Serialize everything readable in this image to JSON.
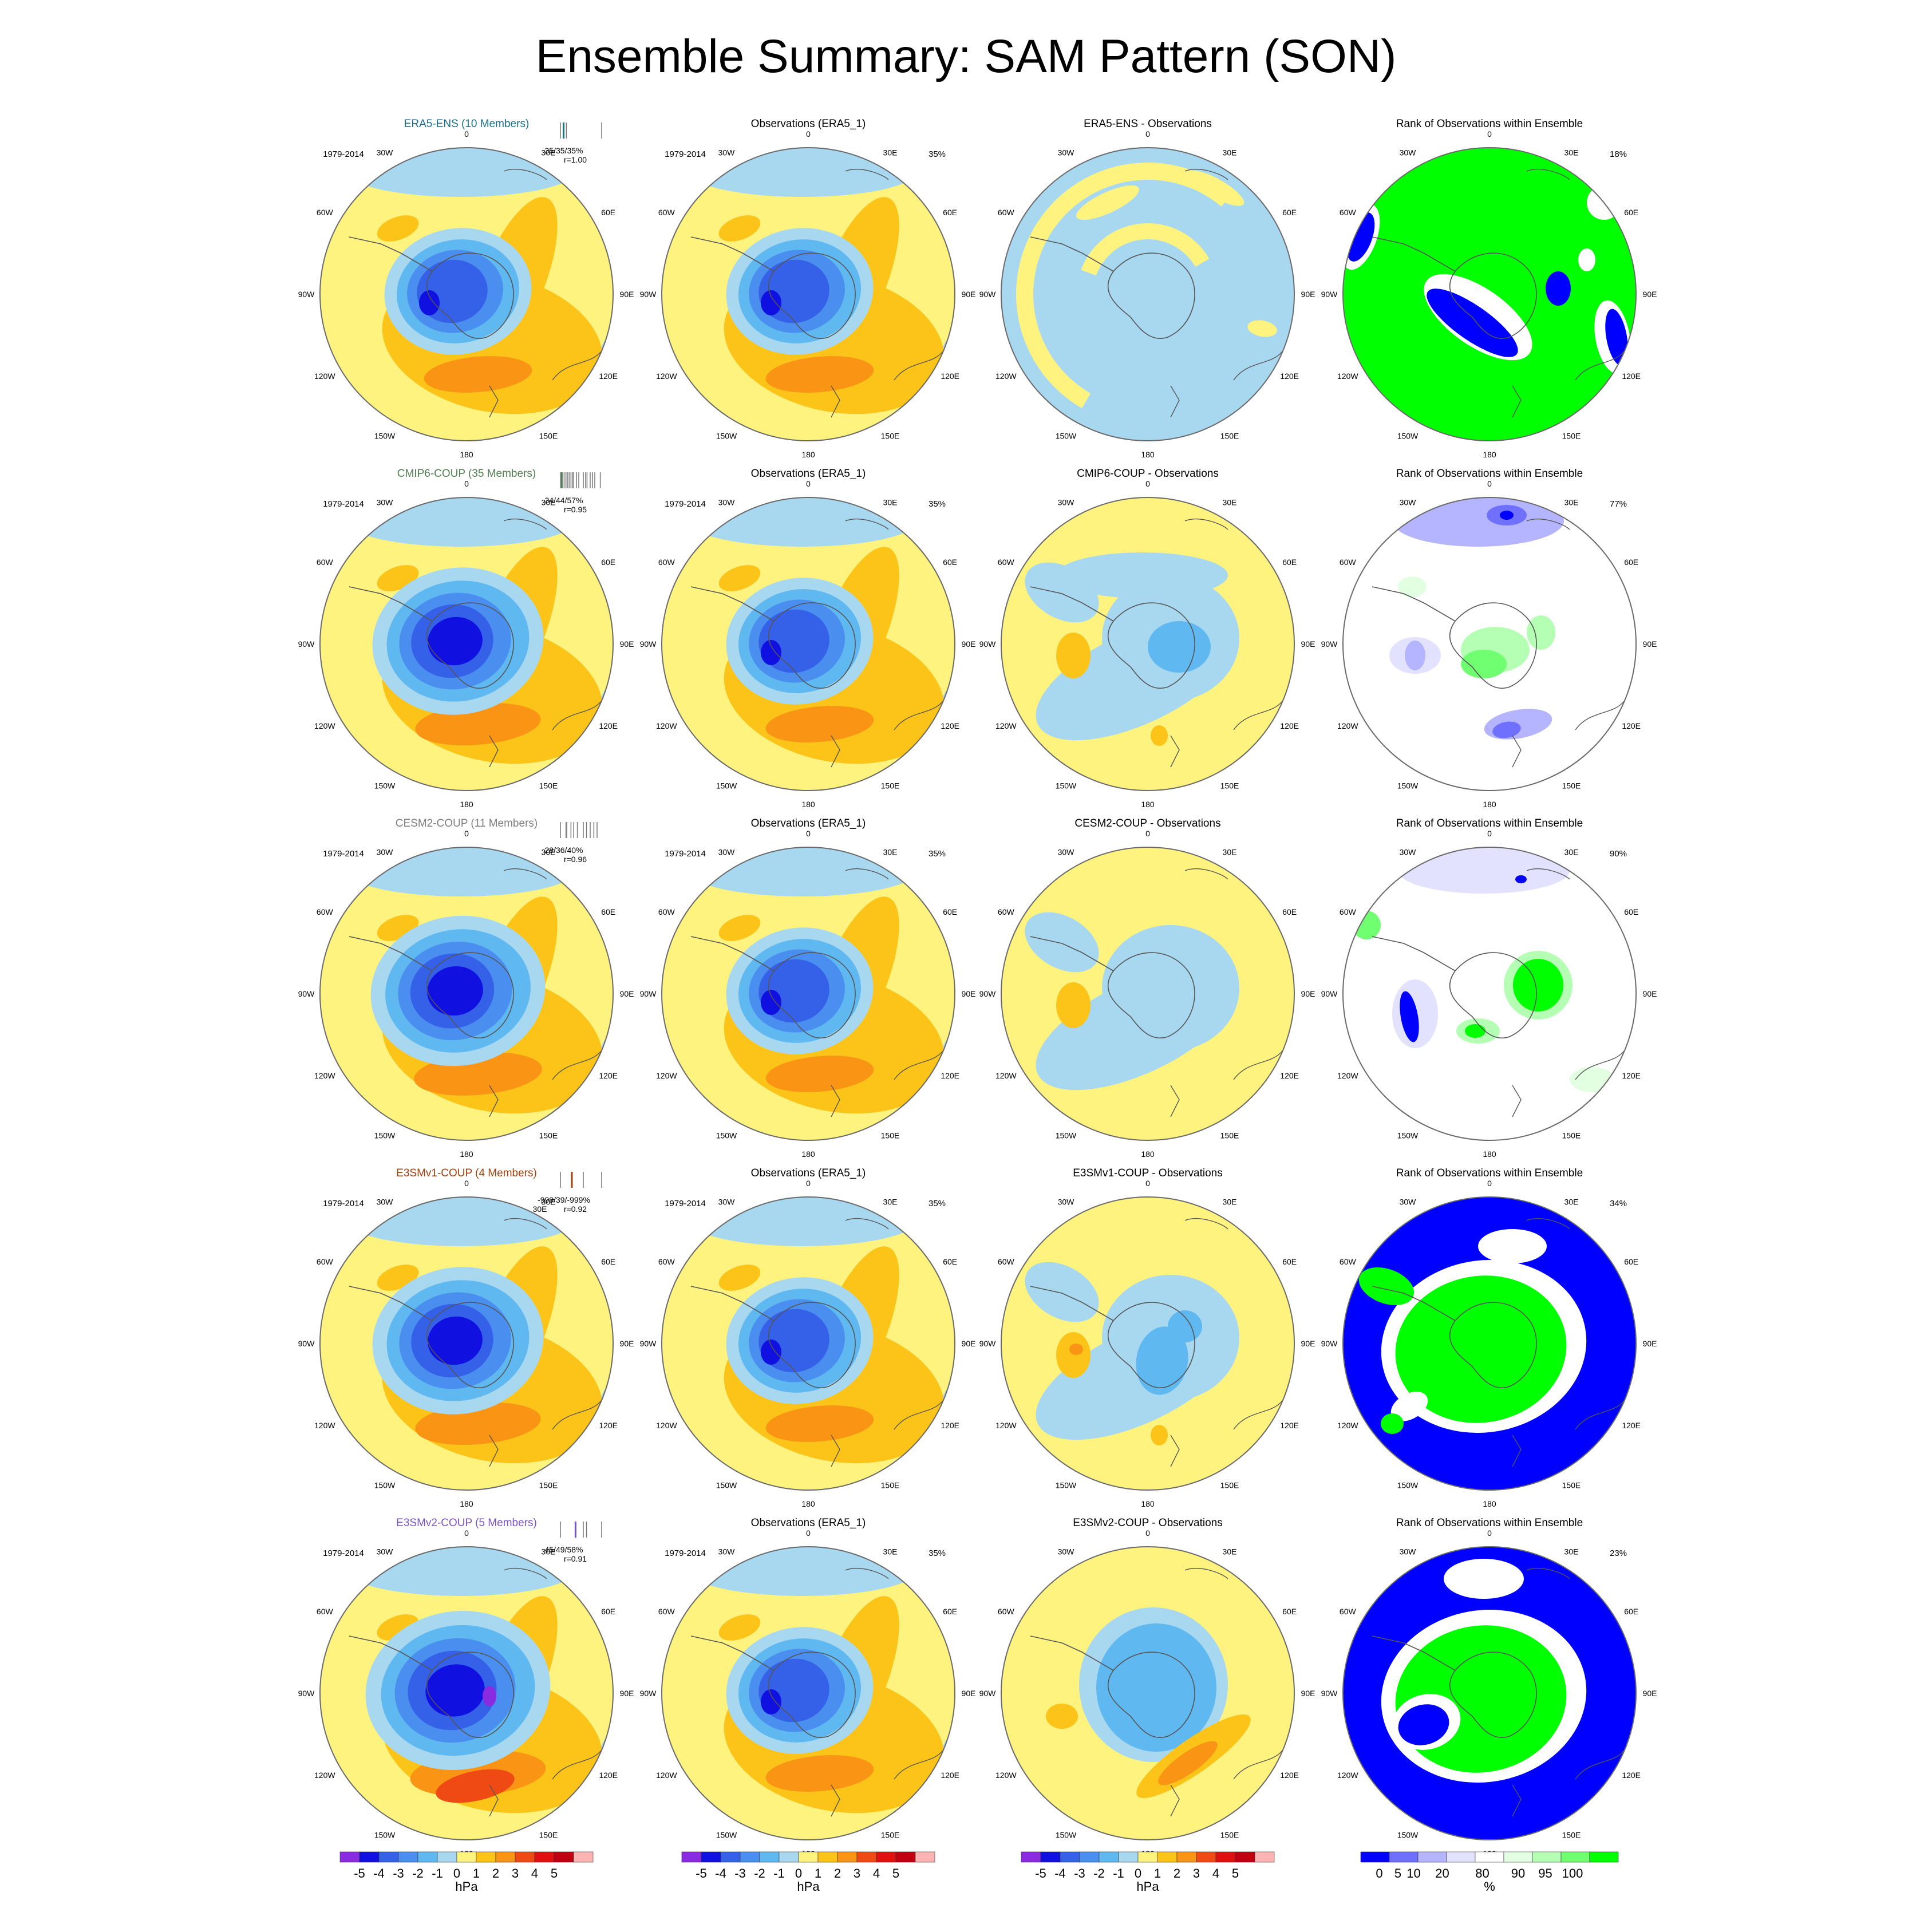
{
  "title": "Ensemble Summary: SAM Pattern (SON)",
  "chart_data": {
    "type": "polar-contour-panels",
    "projection": "south polar stereographic",
    "longitude_labels": [
      "0",
      "30E",
      "60E",
      "90E",
      "120E",
      "150E",
      "180",
      "150W",
      "120W",
      "90W",
      "60W",
      "30W"
    ],
    "colorbars": {
      "hpa": {
        "labels": [
          "-5",
          "-4",
          "-3",
          "-2",
          "-1",
          "0",
          "1",
          "2",
          "3",
          "4",
          "5"
        ],
        "unit": "hPa",
        "colors": [
          "#8a2be2",
          "#1010e0",
          "#3560e8",
          "#4a8ff0",
          "#60b8f0",
          "#a8d8f0",
          "#fff380",
          "#fcc418",
          "#fa9414",
          "#f04a14",
          "#e01010",
          "#c00010",
          "#ffb4b4"
        ]
      },
      "rank": {
        "labels": [
          "0",
          "5",
          "10",
          "20",
          "80",
          "90",
          "95",
          "100"
        ],
        "unit": "%",
        "colors": [
          "#0000ff",
          "#7070ff",
          "#b4b4ff",
          "#e2e2ff",
          "#ffffff",
          "#e2ffe2",
          "#b4ffb4",
          "#70ff70",
          "#00ff00"
        ]
      }
    },
    "rows": [
      {
        "model": {
          "title": "ERA5-ENS (10 Members)",
          "title_color": "#1a6f8a",
          "period": "1979-2014",
          "stats": "35/35/35%",
          "corr": "r=1.00",
          "ticks": [
            0.05,
            0.12,
            0.18,
            0.95
          ]
        },
        "obs": {
          "title": "Observations (ERA5_1)",
          "period": "1979-2014",
          "pct": "35%"
        },
        "diff": {
          "title": "ERA5-ENS - Observations"
        },
        "rank": {
          "title": "Rank of Observations within Ensemble",
          "pct": "18%"
        }
      },
      {
        "model": {
          "title": "CMIP6-COUP (35 Members)",
          "title_color": "#4f7f4f",
          "period": "1979-2014",
          "stats": "34/44/57%",
          "corr": "r=0.95",
          "ticks": [
            0.05,
            0.08,
            0.13,
            0.17,
            0.2,
            0.24,
            0.28,
            0.31,
            0.34,
            0.4,
            0.45,
            0.55,
            0.6,
            0.63,
            0.7,
            0.75,
            0.8,
            0.92
          ]
        },
        "obs": {
          "title": "Observations (ERA5_1)",
          "period": "1979-2014",
          "pct": "35%"
        },
        "diff": {
          "title": "CMIP6-COUP - Observations"
        },
        "rank": {
          "title": "Rank of Observations within Ensemble",
          "pct": "77%"
        }
      },
      {
        "model": {
          "title": "CESM2-COUP (11 Members)",
          "title_color": "#7f7f7f",
          "period": "1979-2014",
          "stats": "28/36/40%",
          "corr": "r=0.96",
          "ticks": [
            0.05,
            0.18,
            0.28,
            0.34,
            0.42,
            0.55,
            0.62,
            0.7,
            0.78,
            0.85
          ]
        },
        "obs": {
          "title": "Observations (ERA5_1)",
          "period": "1979-2014",
          "pct": "35%"
        },
        "diff": {
          "title": "CESM2-COUP - Observations"
        },
        "rank": {
          "title": "Rank of Observations within Ensemble",
          "pct": "90%"
        }
      },
      {
        "model": {
          "title": "E3SMv1-COUP (4 Members)",
          "title_color": "#a5400c",
          "period": "1979-2014",
          "stats": "-999/39/-999%",
          "corr": "r=0.92",
          "lon": "30E",
          "ticks": [
            0.05,
            0.3,
            0.55,
            0.95
          ]
        },
        "obs": {
          "title": "Observations (ERA5_1)",
          "period": "1979-2014",
          "pct": "35%"
        },
        "diff": {
          "title": "E3SMv1-COUP - Observations"
        },
        "rank": {
          "title": "Rank of Observations within Ensemble",
          "pct": "34%"
        }
      },
      {
        "model": {
          "title": "E3SMv2-COUP (5 Members)",
          "title_color": "#7a52c8",
          "period": "1979-2014",
          "stats": "45/49/58%",
          "corr": "r=0.91",
          "ticks": [
            0.05,
            0.38,
            0.55,
            0.62,
            0.95
          ]
        },
        "obs": {
          "title": "Observations (ERA5_1)",
          "period": "1979-2014",
          "pct": "35%"
        },
        "diff": {
          "title": "E3SMv2-COUP - Observations"
        },
        "rank": {
          "title": "Rank of Observations within Ensemble",
          "pct": "23%"
        }
      }
    ]
  }
}
